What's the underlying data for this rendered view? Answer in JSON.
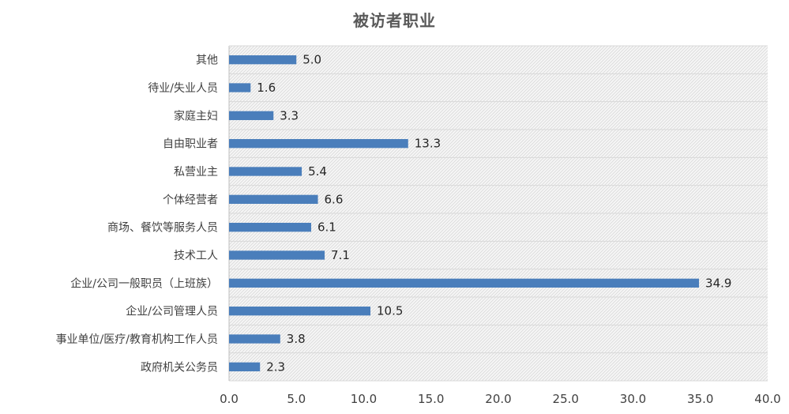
{
  "chart_data": {
    "type": "bar",
    "orientation": "horizontal",
    "title": "被访者职业",
    "categories": [
      "其他",
      "待业/失业人员",
      "家庭主妇",
      "自由职业者",
      "私营业主",
      "个体经营者",
      "商场、餐饮等服务人员",
      "技术工人",
      "企业/公司一般职员（上班族）",
      "企业/公司管理人员",
      "事业单位/医疗/教育机构工作人员",
      "政府机关公务员"
    ],
    "values": [
      5.0,
      1.6,
      3.3,
      13.3,
      5.4,
      6.6,
      6.1,
      7.1,
      34.9,
      10.5,
      3.8,
      2.3
    ],
    "value_labels": [
      "5.0",
      "1.6",
      "3.3",
      "13.3",
      "5.4",
      "6.6",
      "6.1",
      "7.1",
      "34.9",
      "10.5",
      "3.8",
      "2.3"
    ],
    "xlim": [
      0,
      40
    ],
    "xticks": [
      "0.0",
      "5.0",
      "10.0",
      "15.0",
      "20.0",
      "25.0",
      "30.0",
      "35.0",
      "40.0"
    ],
    "xlabel": "",
    "ylabel": "",
    "grid": true,
    "bar_color": "#4a7ebb",
    "plot_background": "hatched-light-gray"
  }
}
